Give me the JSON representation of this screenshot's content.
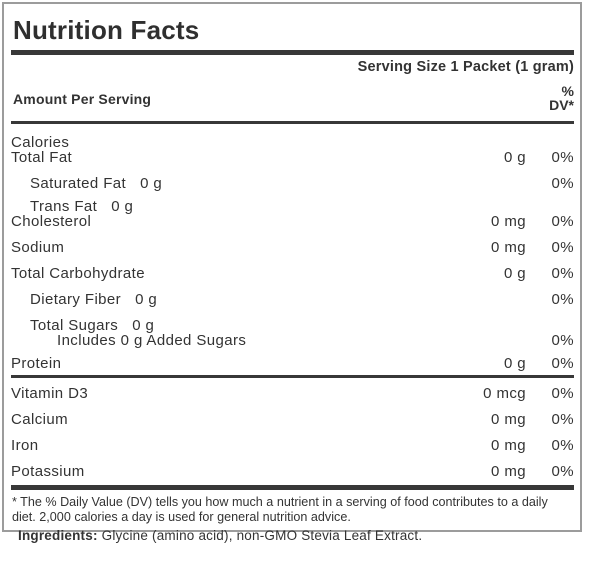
{
  "label": {
    "title": "Nutrition Facts",
    "serving_size": "Serving Size 1 Packet (1 gram)",
    "amount_per_serving": "Amount Per Serving",
    "dv_header_line1": "%",
    "dv_header_line2": "DV*",
    "nutrients": [
      {
        "name": "Calories",
        "indent": 0,
        "amount": "",
        "dv": "",
        "spacing": "normal"
      },
      {
        "name": "Total Fat",
        "indent": 0,
        "amount": "0 g",
        "dv": "0%",
        "spacing": "tight"
      },
      {
        "name": "Saturated Fat",
        "indent": 1,
        "inline_amount": "0 g",
        "amount": "",
        "dv": "0%",
        "spacing": "normal"
      },
      {
        "name": "Trans Fat",
        "indent": 1,
        "inline_amount": "0 g",
        "amount": "",
        "dv": "",
        "spacing": "snug"
      },
      {
        "name": "Cholesterol",
        "indent": 0,
        "amount": "0 mg",
        "dv": "0%",
        "spacing": "tight"
      },
      {
        "name": "Sodium",
        "indent": 0,
        "amount": "0 mg",
        "dv": "0%",
        "spacing": "normal"
      },
      {
        "name": "Total Carbohydrate",
        "indent": 0,
        "amount": "0 g",
        "dv": "0%",
        "spacing": "normal"
      },
      {
        "name": "Dietary Fiber",
        "indent": 1,
        "inline_amount": "0 g",
        "amount": "",
        "dv": "0%",
        "spacing": "normal"
      },
      {
        "name": "Total Sugars",
        "indent": 1,
        "inline_amount": "0 g",
        "amount": "",
        "dv": "",
        "spacing": "normal"
      },
      {
        "name": "Includes 0 g Added Sugars",
        "indent": 2,
        "amount": "",
        "dv": "0%",
        "spacing": "tight"
      },
      {
        "name": "Protein",
        "indent": 0,
        "amount": "0 g",
        "dv": "0%",
        "spacing": "snug"
      }
    ],
    "micronutrients": [
      {
        "name": "Vitamin D3",
        "amount": "0 mcg",
        "dv": "0%"
      },
      {
        "name": "Calcium",
        "amount": "0 mg",
        "dv": "0%"
      },
      {
        "name": "Iron",
        "amount": "0 mg",
        "dv": "0%"
      },
      {
        "name": "Potassium",
        "amount": "0 mg",
        "dv": "0%"
      }
    ],
    "footnote": "* The % Daily Value (DV) tells you how much a nutrient in a serving of food contributes to a daily diet. 2,000 calories a day is used for general nutrition advice."
  },
  "ingredients": {
    "label": "Ingredients:",
    "text": "Glycine (amino acid), non-GMO Stevia Leaf Extract."
  },
  "colors": {
    "text": "#333333",
    "rule": "#383838",
    "border": "#9c9c9c",
    "background": "#ffffff"
  }
}
